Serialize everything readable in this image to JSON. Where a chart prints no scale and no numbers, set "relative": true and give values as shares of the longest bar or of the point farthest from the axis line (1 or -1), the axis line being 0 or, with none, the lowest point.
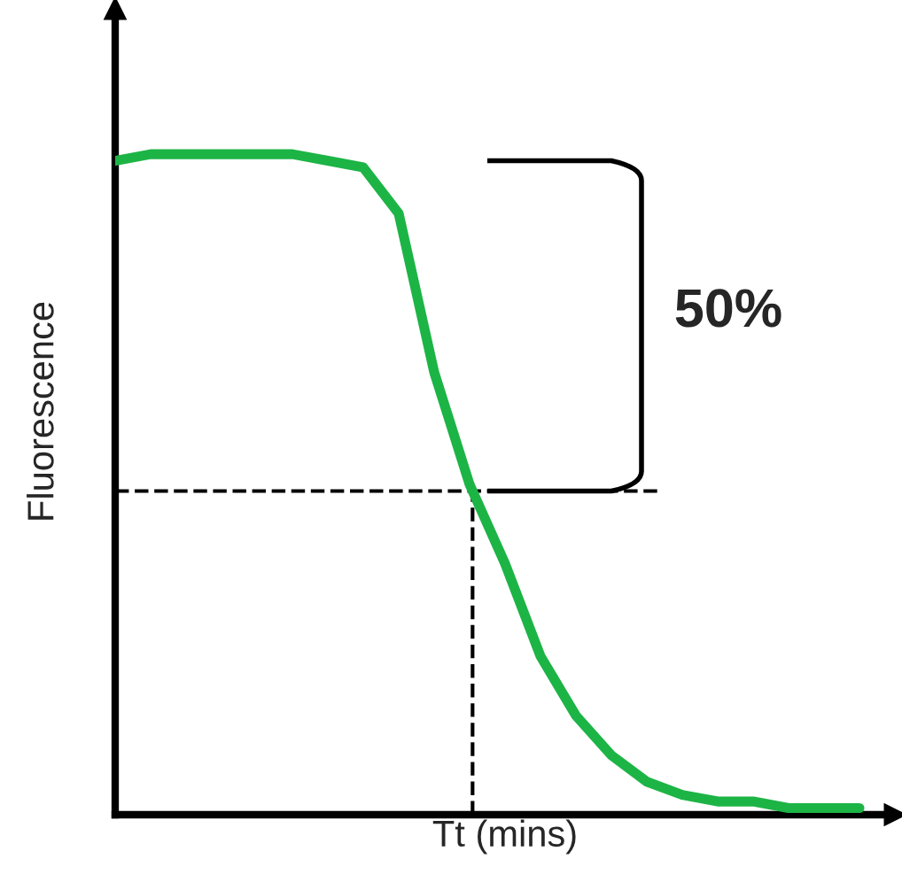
{
  "chart_data": {
    "type": "line",
    "relative": true,
    "xlabel": "Tt (mins)",
    "ylabel": "Fluorescence",
    "categories": [
      null,
      null,
      null,
      null,
      null,
      null,
      null,
      null,
      null,
      null,
      null,
      null,
      null,
      null,
      null,
      null,
      null,
      null,
      null,
      null,
      null,
      null
    ],
    "series": [
      {
        "color": "#1db446",
        "values": [
          0.99,
          1.0,
          1.0,
          1.0,
          1.0,
          1.0,
          0.99,
          0.98,
          0.91,
          0.67,
          0.5,
          0.38,
          0.24,
          0.15,
          0.09,
          0.05,
          0.03,
          0.02,
          0.02,
          0.01,
          0.01,
          0.01
        ]
      }
    ],
    "ref_lines": [
      {
        "axis": "y",
        "value": 0.49,
        "line_style": "dashed",
        "color": "#000000"
      }
    ],
    "annotations": [
      "50%"
    ],
    "legend": false,
    "marker": "none",
    "line_style": "solid"
  }
}
